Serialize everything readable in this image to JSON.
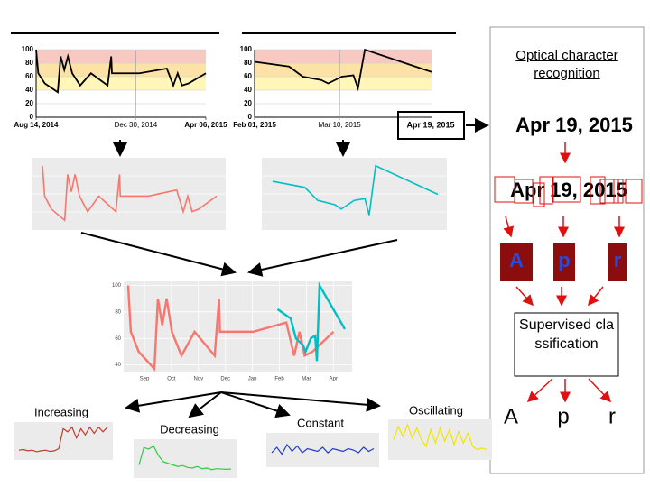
{
  "top_charts": [
    {
      "ylim": [
        0,
        100
      ],
      "yticks": [
        0,
        20,
        40,
        60,
        80,
        100
      ],
      "xlim": [
        "2014-08-14",
        "2015-04-06"
      ],
      "xticks": [
        {
          "value": "2014-08-14",
          "label": "Aug 14, 2014"
        },
        {
          "value": "2014-12-30",
          "label": "Dec 30, 2014"
        },
        {
          "value": "2015-04-06",
          "label": "Apr 06, 2015"
        }
      ],
      "x": [
        "2014-08-14",
        "2014-08-17",
        "2014-08-26",
        "2014-09-13",
        "2014-09-17",
        "2014-09-22",
        "2014-09-27",
        "2014-10-03",
        "2014-10-14",
        "2014-10-29",
        "2014-11-21",
        "2014-11-26",
        "2014-11-27",
        "2015-01-04",
        "2015-02-11",
        "2015-02-20",
        "2015-02-26",
        "2015-03-04",
        "2015-03-13",
        "2015-04-06"
      ],
      "values": [
        100,
        65,
        50,
        37,
        90,
        70,
        90,
        65,
        47,
        65,
        47,
        90,
        65,
        65,
        72,
        47,
        65,
        47,
        50,
        65
      ],
      "color": "#f8766d"
    },
    {
      "ylim": [
        0,
        100
      ],
      "yticks": [
        0,
        20,
        40,
        60,
        80,
        100
      ],
      "xlim": [
        "2015-02-01",
        "2015-04-19"
      ],
      "xticks": [
        {
          "value": "2015-02-01",
          "label": "Feb 01, 2015"
        },
        {
          "value": "2015-03-10",
          "label": "Mar 10, 2015"
        }
      ],
      "x": [
        "2015-02-01",
        "2015-02-16",
        "2015-02-22",
        "2015-03-02",
        "2015-03-05",
        "2015-03-11",
        "2015-03-16",
        "2015-03-18",
        "2015-03-21",
        "2015-04-19"
      ],
      "values": [
        82,
        75,
        60,
        55,
        50,
        60,
        62,
        43,
        100,
        67
      ],
      "color": "#00bfc4"
    }
  ],
  "highlighted_date": "Apr 19, 2015",
  "merged": {
    "ylim": [
      35,
      103
    ],
    "yticks": [
      40,
      60,
      80,
      100
    ],
    "xlim": [
      "2014-08-14",
      "2015-04-19"
    ],
    "months": [
      "Sep",
      "Oct",
      "Nov",
      "Dec",
      "Jan",
      "Feb",
      "Mar",
      "Apr"
    ]
  },
  "patterns": [
    {
      "label": "Increasing",
      "color": "#c0392b",
      "ylim": [
        0,
        100
      ],
      "values": [
        20,
        22,
        18,
        20,
        15,
        18,
        20,
        16,
        18,
        25,
        90,
        80,
        95,
        60,
        90,
        70,
        95,
        75,
        95,
        80,
        95
      ]
    },
    {
      "label": "Decreasing",
      "color": "#2ecc40",
      "ylim": [
        0,
        100
      ],
      "values": [
        30,
        85,
        80,
        90,
        60,
        40,
        35,
        30,
        25,
        28,
        22,
        20,
        25,
        18,
        20,
        15,
        18,
        17,
        16,
        17
      ]
    },
    {
      "label": "Constant",
      "color": "#1f3fbf",
      "ylim": [
        0,
        100
      ],
      "values": [
        40,
        60,
        35,
        70,
        45,
        65,
        40,
        55,
        50,
        45,
        60,
        40,
        55,
        50,
        45,
        55,
        50,
        40,
        60,
        45,
        55
      ]
    },
    {
      "label": "Oscillating",
      "color": "#f1e500",
      "ylim": [
        0,
        100
      ],
      "values": [
        50,
        90,
        60,
        95,
        55,
        85,
        50,
        30,
        80,
        40,
        85,
        45,
        80,
        35,
        75,
        40,
        70,
        30,
        20,
        25,
        20
      ]
    }
  ],
  "ocr": {
    "title": "Optical character recognition",
    "recognized": "Apr 19, 2015",
    "segmented": "Apr 19, 2015",
    "segments": [
      "A",
      "p",
      "r"
    ],
    "classifier": "Supervised classification",
    "outputs": [
      "A",
      "p",
      "r"
    ]
  }
}
